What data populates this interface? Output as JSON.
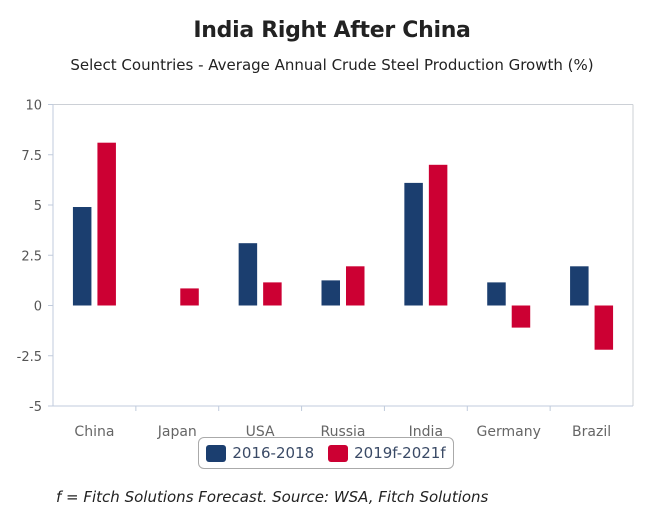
{
  "chart_data": {
    "type": "bar",
    "title": "India Right After China",
    "subtitle": "Select Countries - Average Annual Crude Steel Production Growth (%)",
    "xlabel": "",
    "ylabel": "",
    "categories": [
      "China",
      "Japan",
      "USA",
      "Russia",
      "India",
      "Germany",
      "Brazil"
    ],
    "series": [
      {
        "name": "2016-2018",
        "color": "#1b3e6f",
        "values": [
          4.9,
          0.0,
          3.1,
          1.25,
          6.1,
          1.15,
          1.95
        ]
      },
      {
        "name": "2019f-2021f",
        "color": "#cc0033",
        "values": [
          8.1,
          0.85,
          1.15,
          1.95,
          7.0,
          -1.1,
          -2.2
        ]
      }
    ],
    "ylim": [
      -5,
      10
    ],
    "yticks": [
      10,
      7.5,
      5,
      2.5,
      0,
      -2.5,
      -5
    ],
    "ytick_labels": [
      "10",
      "7.5",
      "5",
      "2.5",
      "0",
      "-2.5",
      "-5"
    ],
    "grid": false,
    "legend_position": "bottom-center"
  },
  "footnote": "f = Fitch Solutions Forecast. Source: WSA, Fitch Solutions"
}
